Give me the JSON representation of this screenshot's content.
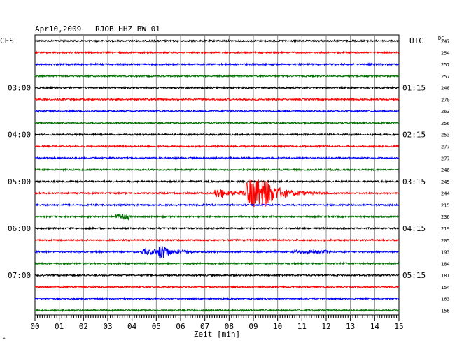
{
  "header": {
    "title": "Apr10,2009   RJOB HHZ BW 01",
    "left_label": "CES",
    "right_label": "UTC",
    "dc_label": "DC"
  },
  "left_hours": [
    "03:00",
    "04:00",
    "05:00",
    "06:00",
    "07:00"
  ],
  "right_hours": [
    "01:15",
    "02:15",
    "03:15",
    "04:15",
    "05:15"
  ],
  "footer": {
    "corner_mark": "^"
  },
  "chart_data": {
    "type": "line",
    "title": "Apr10,2009   RJOB HHZ BW 01",
    "xlabel": "Zeit [min]",
    "xlim": [
      0,
      15
    ],
    "x_ticks": [
      "00",
      "01",
      "02",
      "03",
      "04",
      "05",
      "06",
      "07",
      "08",
      "09",
      "10",
      "11",
      "12",
      "13",
      "14",
      "15"
    ],
    "grid": true,
    "trace_colors": [
      "#000000",
      "#ff0000",
      "#0000ff",
      "#007000"
    ],
    "dc_offsets": [
      247,
      254,
      257,
      257,
      248,
      270,
      263,
      256,
      253,
      277,
      277,
      246,
      245,
      244,
      215,
      236,
      219,
      205,
      193,
      184,
      181,
      154,
      163,
      156
    ],
    "events": [
      {
        "trace": 13,
        "start_min": 7.4,
        "end_min": 12.5,
        "type": "earthquake"
      },
      {
        "trace": 15,
        "start_min": 3.3,
        "end_min": 3.9,
        "type": "burst"
      },
      {
        "trace": 18,
        "start_min": 4.4,
        "end_min": 6.5,
        "type": "event"
      },
      {
        "trace": 18,
        "start_min": 10.6,
        "end_min": 12.2,
        "type": "minor"
      }
    ]
  }
}
